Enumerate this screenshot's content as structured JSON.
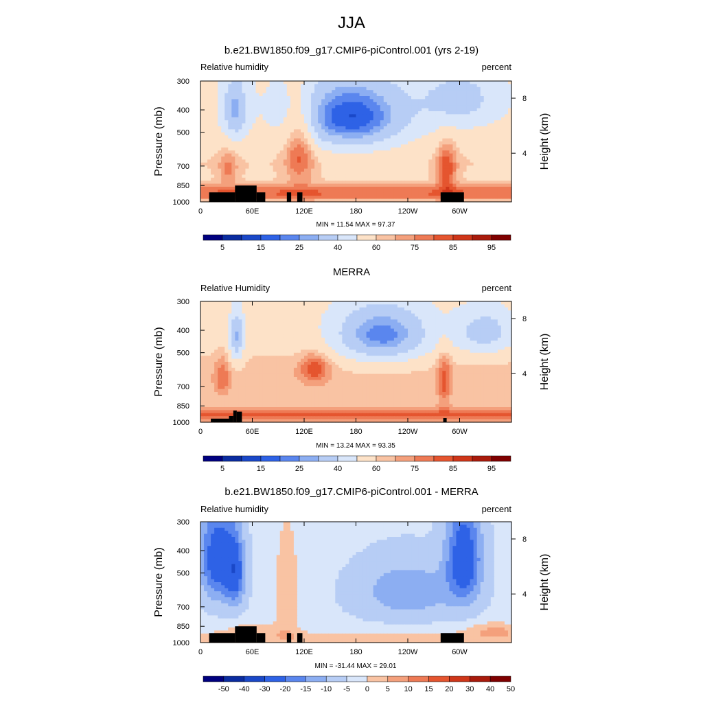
{
  "page_title": "JJA",
  "height_axis_label": "Height (km)",
  "chart_data": [
    {
      "type": "heatmap",
      "title": "b.e21.BW1850.f09_g17.CMIP6-piControl.001 (yrs 2-19)",
      "left_label": "Relative humidity",
      "right_label": "percent",
      "ylabel": "Pressure (mb)",
      "xticks": [
        "0",
        "60E",
        "120E",
        "180",
        "120W",
        "60W"
      ],
      "yticks": [
        "300",
        "400",
        "500",
        "700",
        "850",
        "1000"
      ],
      "height_ticks": [
        "4",
        "8"
      ],
      "x_range": [
        0,
        360
      ],
      "y_range": [
        1000,
        300
      ],
      "min_max_text": "MIN =  11.54  MAX =  97.37",
      "min": 11.54,
      "max": 97.37,
      "colorbar_levels": [
        5,
        10,
        15,
        20,
        25,
        30,
        40,
        50,
        60,
        65,
        70,
        75,
        80,
        85,
        90,
        95
      ],
      "colorbar_tick_labels": [
        "5",
        "15",
        "25",
        "40",
        "60",
        "75",
        "85",
        "95"
      ],
      "field": "model_rh"
    },
    {
      "type": "heatmap",
      "title": "MERRA",
      "left_label": "Relative Humidity",
      "right_label": "percent",
      "ylabel": "Pressure (mb)",
      "xticks": [
        "0",
        "60E",
        "120E",
        "180",
        "120W",
        "60W"
      ],
      "yticks": [
        "300",
        "400",
        "500",
        "700",
        "850",
        "1000"
      ],
      "height_ticks": [
        "4",
        "8"
      ],
      "x_range": [
        0,
        360
      ],
      "y_range": [
        1000,
        300
      ],
      "min_max_text": "MIN =  13.24  MAX =  93.35",
      "min": 13.24,
      "max": 93.35,
      "colorbar_levels": [
        5,
        10,
        15,
        20,
        25,
        30,
        40,
        50,
        60,
        65,
        70,
        75,
        80,
        85,
        90,
        95
      ],
      "colorbar_tick_labels": [
        "5",
        "15",
        "25",
        "40",
        "60",
        "75",
        "85",
        "95"
      ],
      "field": "obs_rh"
    },
    {
      "type": "heatmap",
      "title": "b.e21.BW1850.f09_g17.CMIP6-piControl.001 - MERRA",
      "left_label": "Relative humidity",
      "right_label": "percent",
      "ylabel": "Pressure (mb)",
      "xticks": [
        "0",
        "60E",
        "120E",
        "180",
        "120W",
        "60W"
      ],
      "yticks": [
        "300",
        "400",
        "500",
        "700",
        "850",
        "1000"
      ],
      "height_ticks": [
        "4",
        "8"
      ],
      "x_range": [
        0,
        360
      ],
      "y_range": [
        1000,
        300
      ],
      "min_max_text": "MIN = -31.44  MAX =  29.01",
      "min": -31.44,
      "max": 29.01,
      "colorbar_levels": [
        -50,
        -40,
        -30,
        -20,
        -15,
        -10,
        -5,
        0,
        5,
        10,
        15,
        20,
        30,
        40,
        50
      ],
      "colorbar_tick_labels": [
        "-50",
        "-40",
        "-30",
        "-20",
        "-15",
        "-10",
        "-5",
        "0",
        "5",
        "10",
        "15",
        "20",
        "30",
        "40",
        "50"
      ],
      "field": "diff_rh"
    }
  ],
  "colors": {
    "palette_16": [
      "#00007f",
      "#0a2ca0",
      "#1a48c8",
      "#2e62e6",
      "#5a86ee",
      "#8caef2",
      "#b7cdf5",
      "#d9e6fa",
      "#fde2c8",
      "#f9c3a3",
      "#f4a07c",
      "#ee7a55",
      "#e5552f",
      "#cf3619",
      "#a91b0c",
      "#7f0000"
    ],
    "terrain": "#000000"
  }
}
